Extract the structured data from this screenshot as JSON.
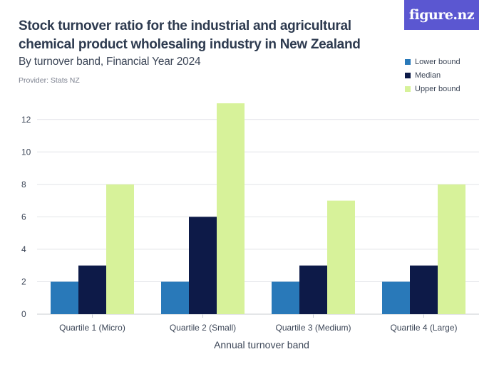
{
  "header": {
    "title": "Stock turnover ratio for the industrial and agricultural chemical product wholesaling industry in New Zealand",
    "subtitle": "By turnover band, Financial Year 2024",
    "provider": "Provider: Stats NZ",
    "brand": "figure.nz"
  },
  "colors": {
    "lower": "#2979b9",
    "median": "#0d1a48",
    "upper": "#d7f29a",
    "brand": "#5b57d1",
    "grid": "#e2e4e8"
  },
  "chart_data": {
    "type": "bar",
    "title": "Stock turnover ratio for the industrial and agricultural chemical product wholesaling industry in New Zealand",
    "subtitle": "By turnover band, Financial Year 2024",
    "xlabel": "Annual turnover band",
    "ylabel": "",
    "ylim": [
      0,
      13
    ],
    "yticks": [
      0,
      2,
      4,
      6,
      8,
      10,
      12
    ],
    "grid": true,
    "legend_position": "top-right",
    "categories": [
      "Quartile 1 (Micro)",
      "Quartile 2 (Small)",
      "Quartile 3 (Medium)",
      "Quartile 4 (Large)"
    ],
    "series": [
      {
        "name": "Lower bound",
        "color": "#2979b9",
        "values": [
          2,
          2,
          2,
          2
        ]
      },
      {
        "name": "Median",
        "color": "#0d1a48",
        "values": [
          3,
          6,
          3,
          3
        ]
      },
      {
        "name": "Upper bound",
        "color": "#d7f29a",
        "values": [
          8,
          13,
          7,
          8
        ]
      }
    ]
  }
}
